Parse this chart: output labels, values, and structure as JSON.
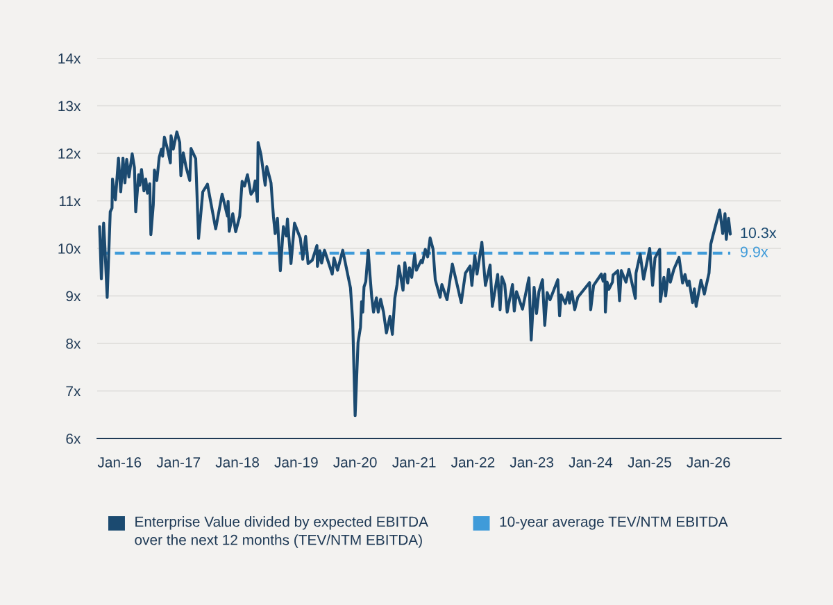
{
  "chart_data": {
    "type": "line",
    "xlim": [
      "2015-08-15",
      "2027-03-26"
    ],
    "ylim": [
      6,
      14
    ],
    "xticks": [
      {
        "value": "2016-01-01",
        "label": "Jan-16"
      },
      {
        "value": "2017-01-01",
        "label": "Jan-17"
      },
      {
        "value": "2018-01-01",
        "label": "Jan-18"
      },
      {
        "value": "2019-01-01",
        "label": "Jan-19"
      },
      {
        "value": "2020-01-01",
        "label": "Jan-20"
      },
      {
        "value": "2021-01-01",
        "label": "Jan-21"
      },
      {
        "value": "2022-01-01",
        "label": "Jan-22"
      },
      {
        "value": "2023-01-01",
        "label": "Jan-23"
      },
      {
        "value": "2024-01-01",
        "label": "Jan-24"
      },
      {
        "value": "2025-01-01",
        "label": "Jan-25"
      },
      {
        "value": "2026-01-01",
        "label": "Jan-26"
      }
    ],
    "yticks": [
      {
        "value": 6,
        "label": "6x"
      },
      {
        "value": 7,
        "label": "7x"
      },
      {
        "value": 8,
        "label": "8x"
      },
      {
        "value": 9,
        "label": "9x"
      },
      {
        "value": 10,
        "label": "10x"
      },
      {
        "value": 11,
        "label": "11x"
      },
      {
        "value": 12,
        "label": "12x"
      },
      {
        "value": 13,
        "label": "13x"
      },
      {
        "value": 14,
        "label": "14x"
      }
    ],
    "grid": "y",
    "legend": "bottom",
    "line_style": "solid",
    "x": [
      "2015-08-30",
      "2015-09-10",
      "2015-09-24",
      "2015-10-02",
      "2015-10-16",
      "2015-11-04",
      "2015-11-15",
      "2015-11-18",
      "2015-11-29",
      "2015-12-06",
      "2015-12-25",
      "2016-01-08",
      "2016-01-22",
      "2016-02-03",
      "2016-02-14",
      "2016-02-28",
      "2016-03-19",
      "2016-04-02",
      "2016-04-10",
      "2016-04-28",
      "2016-05-05",
      "2016-05-16",
      "2016-05-31",
      "2016-06-11",
      "2016-06-22",
      "2016-07-06",
      "2016-07-13",
      "2016-07-28",
      "2016-08-04",
      "2016-08-19",
      "2016-09-03",
      "2016-09-17",
      "2016-09-24",
      "2016-10-05",
      "2016-10-24",
      "2016-11-11",
      "2016-11-15",
      "2016-11-29",
      "2016-12-21",
      "2017-01-08",
      "2017-01-15",
      "2017-01-30",
      "2017-02-17",
      "2017-03-11",
      "2017-03-19",
      "2017-04-17",
      "2017-05-05",
      "2017-05-31",
      "2017-06-29",
      "2017-08-19",
      "2017-09-28",
      "2017-10-31",
      "2017-11-04",
      "2017-11-11",
      "2017-12-03",
      "2017-12-21",
      "2018-01-15",
      "2018-01-30",
      "2018-02-14",
      "2018-03-04",
      "2018-03-26",
      "2018-04-10",
      "2018-04-21",
      "2018-05-05",
      "2018-05-09",
      "2018-05-27",
      "2018-06-22",
      "2018-07-02",
      "2018-07-28",
      "2018-08-12",
      "2018-08-23",
      "2018-09-06",
      "2018-09-24",
      "2018-10-13",
      "2018-10-31",
      "2018-11-07",
      "2018-11-29",
      "2018-12-21",
      "2019-01-26",
      "2019-02-10",
      "2019-02-28",
      "2019-03-15",
      "2019-04-10",
      "2019-05-09",
      "2019-05-12",
      "2019-05-27",
      "2019-06-07",
      "2019-06-25",
      "2019-08-12",
      "2019-08-23",
      "2019-09-14",
      "2019-10-16",
      "2019-12-03",
      "2019-12-17",
      "2020-01-01",
      "2020-01-19",
      "2020-02-03",
      "2020-02-10",
      "2020-02-17",
      "2020-02-25",
      "2020-03-07",
      "2020-03-22",
      "2020-04-02",
      "2020-04-13",
      "2020-04-24",
      "2020-05-12",
      "2020-05-23",
      "2020-06-07",
      "2020-06-25",
      "2020-07-13",
      "2020-08-04",
      "2020-08-19",
      "2020-09-03",
      "2020-09-17",
      "2020-09-28",
      "2020-10-24",
      "2020-11-04",
      "2020-11-22",
      "2020-12-03",
      "2020-12-17",
      "2021-01-04",
      "2021-01-15",
      "2021-02-14",
      "2021-02-21",
      "2021-03-11",
      "2021-03-26",
      "2021-04-10",
      "2021-04-28",
      "2021-05-12",
      "2021-06-11",
      "2021-06-22",
      "2021-07-24",
      "2021-08-26",
      "2021-10-20",
      "2021-11-15",
      "2021-12-14",
      "2021-12-25",
      "2022-01-12",
      "2022-01-26",
      "2022-02-25",
      "2022-03-19",
      "2022-04-17",
      "2022-05-01",
      "2022-06-03",
      "2022-06-18",
      "2022-06-29",
      "2022-07-17",
      "2022-08-01",
      "2022-09-03",
      "2022-09-14",
      "2022-09-28",
      "2022-11-04",
      "2022-12-14",
      "2022-12-28",
      "2023-01-15",
      "2023-01-30",
      "2023-02-14",
      "2023-03-08",
      "2023-03-22",
      "2023-04-06",
      "2023-04-24",
      "2023-06-11",
      "2023-06-22",
      "2023-07-02",
      "2023-07-28",
      "2023-08-15",
      "2023-08-23",
      "2023-09-06",
      "2023-09-24",
      "2023-10-13",
      "2023-12-25",
      "2024-01-01",
      "2024-01-19",
      "2024-03-07",
      "2024-03-18",
      "2024-03-29",
      "2024-04-01",
      "2024-04-12",
      "2024-04-23",
      "2024-05-15",
      "2024-05-19",
      "2024-06-17",
      "2024-06-28",
      "2024-07-09",
      "2024-08-07",
      "2024-08-25",
      "2024-10-04",
      "2024-10-08",
      "2024-11-03",
      "2024-11-24",
      "2025-01-01",
      "2025-01-19",
      "2025-02-03",
      "2025-03-04",
      "2025-03-08",
      "2025-03-30",
      "2025-04-10",
      "2025-04-28",
      "2025-05-09",
      "2025-05-31",
      "2025-07-02",
      "2025-07-24",
      "2025-08-08",
      "2025-08-23",
      "2025-09-03",
      "2025-09-24",
      "2025-10-05",
      "2025-10-16",
      "2025-11-15",
      "2025-12-06",
      "2026-01-04",
      "2026-01-15",
      "2026-01-26",
      "2026-03-11",
      "2026-03-30",
      "2026-04-13",
      "2026-04-21",
      "2026-05-05",
      "2026-05-16"
    ],
    "series": [
      {
        "name": "Enterprise Value divided by expected EBITDA\nover the next 12 months (TEV/NTM EBITDA)",
        "color": "#1b4a70",
        "values": [
          10.46,
          9.36,
          10.53,
          10.02,
          8.97,
          10.77,
          10.85,
          11.46,
          11.16,
          11.02,
          11.9,
          11.19,
          11.9,
          11.38,
          11.87,
          11.5,
          11.99,
          11.7,
          10.77,
          11.55,
          11.33,
          11.66,
          11.21,
          11.46,
          11.16,
          11.36,
          10.29,
          10.92,
          11.65,
          11.43,
          11.92,
          12.09,
          11.94,
          12.34,
          12.09,
          11.8,
          12.37,
          12.09,
          12.45,
          12.23,
          11.53,
          12.01,
          11.7,
          11.43,
          12.1,
          11.89,
          10.21,
          11.19,
          11.35,
          10.41,
          11.14,
          10.68,
          10.99,
          10.36,
          10.73,
          10.35,
          10.68,
          11.41,
          11.31,
          11.55,
          11.14,
          11.21,
          11.42,
          10.99,
          12.23,
          11.97,
          11.33,
          11.72,
          11.38,
          10.68,
          10.31,
          10.63,
          9.53,
          10.46,
          10.26,
          10.62,
          9.68,
          10.53,
          10.21,
          9.77,
          10.25,
          9.68,
          9.75,
          10.06,
          9.62,
          9.95,
          9.69,
          9.96,
          9.46,
          9.8,
          9.54,
          9.96,
          9.17,
          8.46,
          6.48,
          8.02,
          8.34,
          8.88,
          8.66,
          9.19,
          9.3,
          9.96,
          9.44,
          8.97,
          8.66,
          8.96,
          8.66,
          8.93,
          8.66,
          8.22,
          8.57,
          8.19,
          8.95,
          9.24,
          9.63,
          9.12,
          9.7,
          9.27,
          9.59,
          9.39,
          9.87,
          9.54,
          9.75,
          9.7,
          9.98,
          9.82,
          10.22,
          9.99,
          9.34,
          8.97,
          9.24,
          8.92,
          9.67,
          8.86,
          9.48,
          9.63,
          9.22,
          9.85,
          9.46,
          10.13,
          9.22,
          9.65,
          8.78,
          9.45,
          8.71,
          9.4,
          9.24,
          8.66,
          9.24,
          8.68,
          9.09,
          8.72,
          9.38,
          8.07,
          9.18,
          8.63,
          9.09,
          9.34,
          8.38,
          9.07,
          8.92,
          9.34,
          8.58,
          9.02,
          8.84,
          9.07,
          8.85,
          9.09,
          8.71,
          8.97,
          9.28,
          8.71,
          9.22,
          9.46,
          9.31,
          9.46,
          8.66,
          9.29,
          9.14,
          9.29,
          9.44,
          9.53,
          8.9,
          9.53,
          9.29,
          9.56,
          8.95,
          9.48,
          9.88,
          9.35,
          10.0,
          9.22,
          9.8,
          9.98,
          8.88,
          9.39,
          9.0,
          9.56,
          9.29,
          9.56,
          9.81,
          9.27,
          9.45,
          9.22,
          9.31,
          8.86,
          9.15,
          8.78,
          9.33,
          9.04,
          9.48,
          10.09,
          10.24,
          10.81,
          10.31,
          10.73,
          10.19,
          10.63,
          10.3
        ]
      }
    ],
    "ref_lines": [
      {
        "axis": "y",
        "value": 9.9,
        "label": "10-year average TEV/NTM EBITDA",
        "color": "#3f9bd9",
        "line_style": "dashed"
      }
    ],
    "annotations": [
      {
        "text": "10.3x",
        "x": "2026-05-16",
        "y": 10.3
      },
      {
        "text": "9.9x",
        "x": "2026-05-16",
        "y": 9.9
      }
    ]
  }
}
